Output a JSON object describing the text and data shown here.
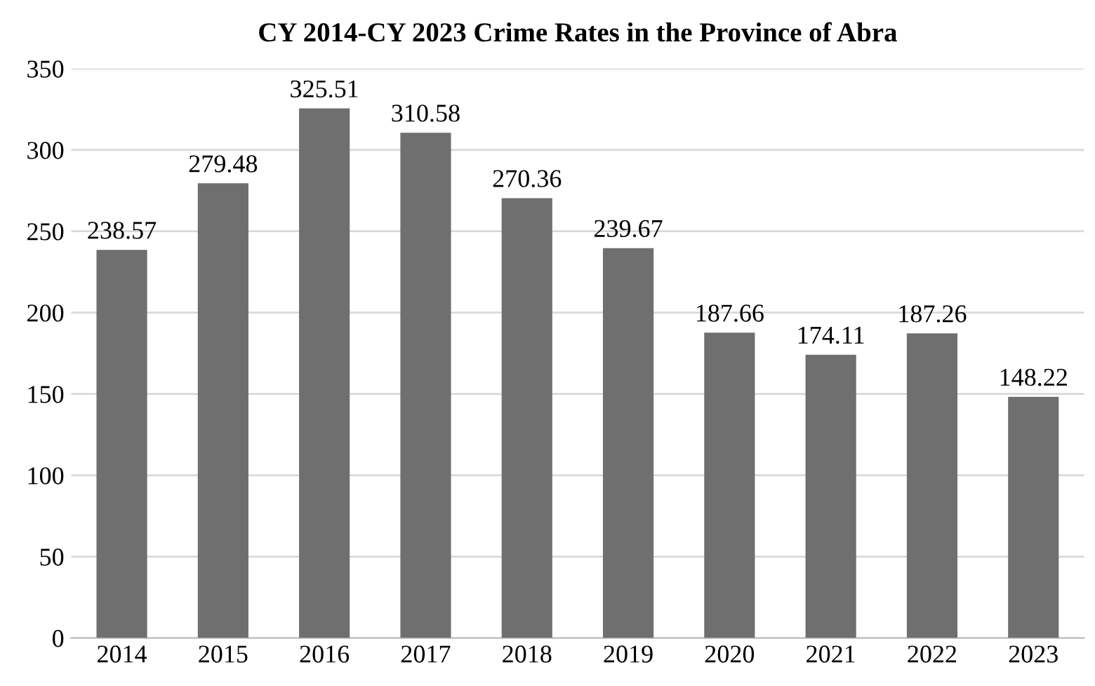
{
  "chart_data": {
    "type": "bar",
    "title": "CY 2014-CY 2023 Crime Rates in the Province of Abra",
    "categories": [
      "2014",
      "2015",
      "2016",
      "2017",
      "2018",
      "2019",
      "2020",
      "2021",
      "2022",
      "2023"
    ],
    "values": [
      238.57,
      279.48,
      325.51,
      310.58,
      270.36,
      239.67,
      187.66,
      174.11,
      187.26,
      148.22
    ],
    "color": "#6f6f6f",
    "ylim": [
      0,
      350
    ],
    "yticks": [
      0,
      50,
      100,
      150,
      200,
      250,
      300,
      350
    ],
    "grid": "y",
    "data_labels": true
  }
}
